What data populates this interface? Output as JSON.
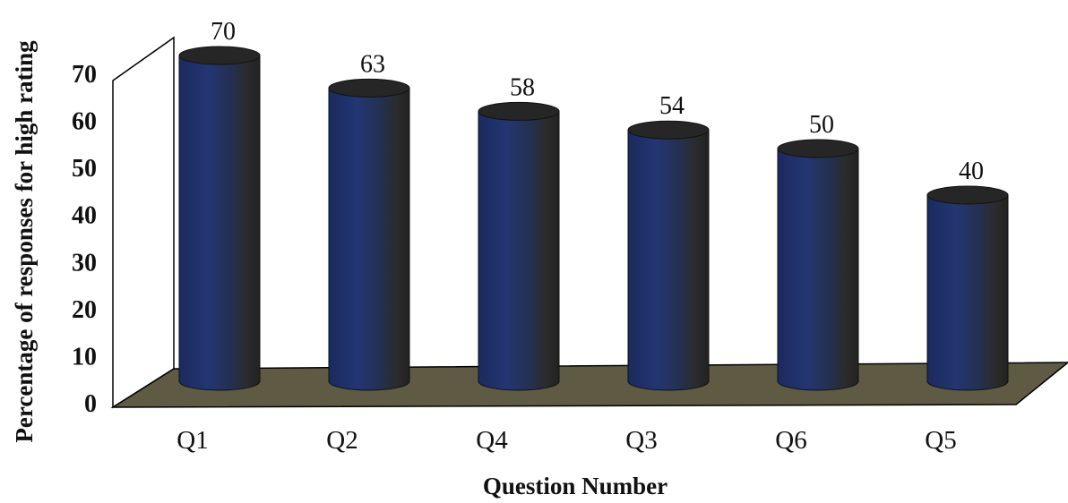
{
  "chart_data": {
    "type": "bar",
    "title": "",
    "xlabel": "Question Number",
    "ylabel": "Percentage of responses for high rating",
    "categories": [
      "Q1",
      "Q2",
      "Q4",
      "Q3",
      "Q6",
      "Q5"
    ],
    "values": [
      70,
      63,
      58,
      54,
      50,
      40
    ],
    "data_labels": [
      "70",
      "63",
      "58",
      "54",
      "50",
      "40"
    ],
    "yticks": [
      "0",
      "10",
      "20",
      "30",
      "40",
      "50",
      "60",
      "70"
    ],
    "ylim": [
      0,
      70
    ],
    "grid": false,
    "style": "3d-cylinder",
    "colors": {
      "bar_front": "#1f2f66",
      "bar_top": "#262626",
      "bar_side": "#2a2a2a",
      "floor": "#5e5a43",
      "wall": "#ffffff"
    }
  }
}
